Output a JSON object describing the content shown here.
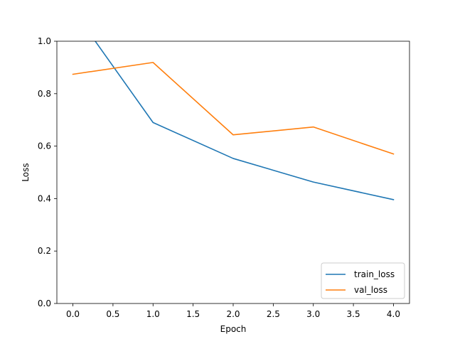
{
  "chart_data": {
    "type": "line",
    "title": "",
    "xlabel": "Epoch",
    "ylabel": "Loss",
    "xlim": [
      -0.2,
      4.2
    ],
    "ylim": [
      0.0,
      1.0
    ],
    "x_ticks": [
      0.0,
      0.5,
      1.0,
      1.5,
      2.0,
      2.5,
      3.0,
      3.5,
      4.0
    ],
    "x_tick_labels": [
      "0.0",
      "0.5",
      "1.0",
      "1.5",
      "2.0",
      "2.5",
      "3.0",
      "3.5",
      "4.0"
    ],
    "y_ticks": [
      0.0,
      0.2,
      0.4,
      0.6,
      0.8,
      1.0
    ],
    "y_tick_labels": [
      "0.0",
      "0.2",
      "0.4",
      "0.6",
      "0.8",
      "1.0"
    ],
    "grid": false,
    "legend_position": "lower-right",
    "series": [
      {
        "name": "train_loss",
        "color": "#1f77b4",
        "x": [
          0,
          1,
          2,
          3,
          4
        ],
        "y": [
          1.12,
          0.69,
          0.553,
          0.463,
          0.396
        ]
      },
      {
        "name": "val_loss",
        "color": "#ff7f0e",
        "x": [
          0,
          1,
          2,
          3,
          4
        ],
        "y": [
          0.874,
          0.919,
          0.643,
          0.673,
          0.57
        ]
      }
    ]
  }
}
